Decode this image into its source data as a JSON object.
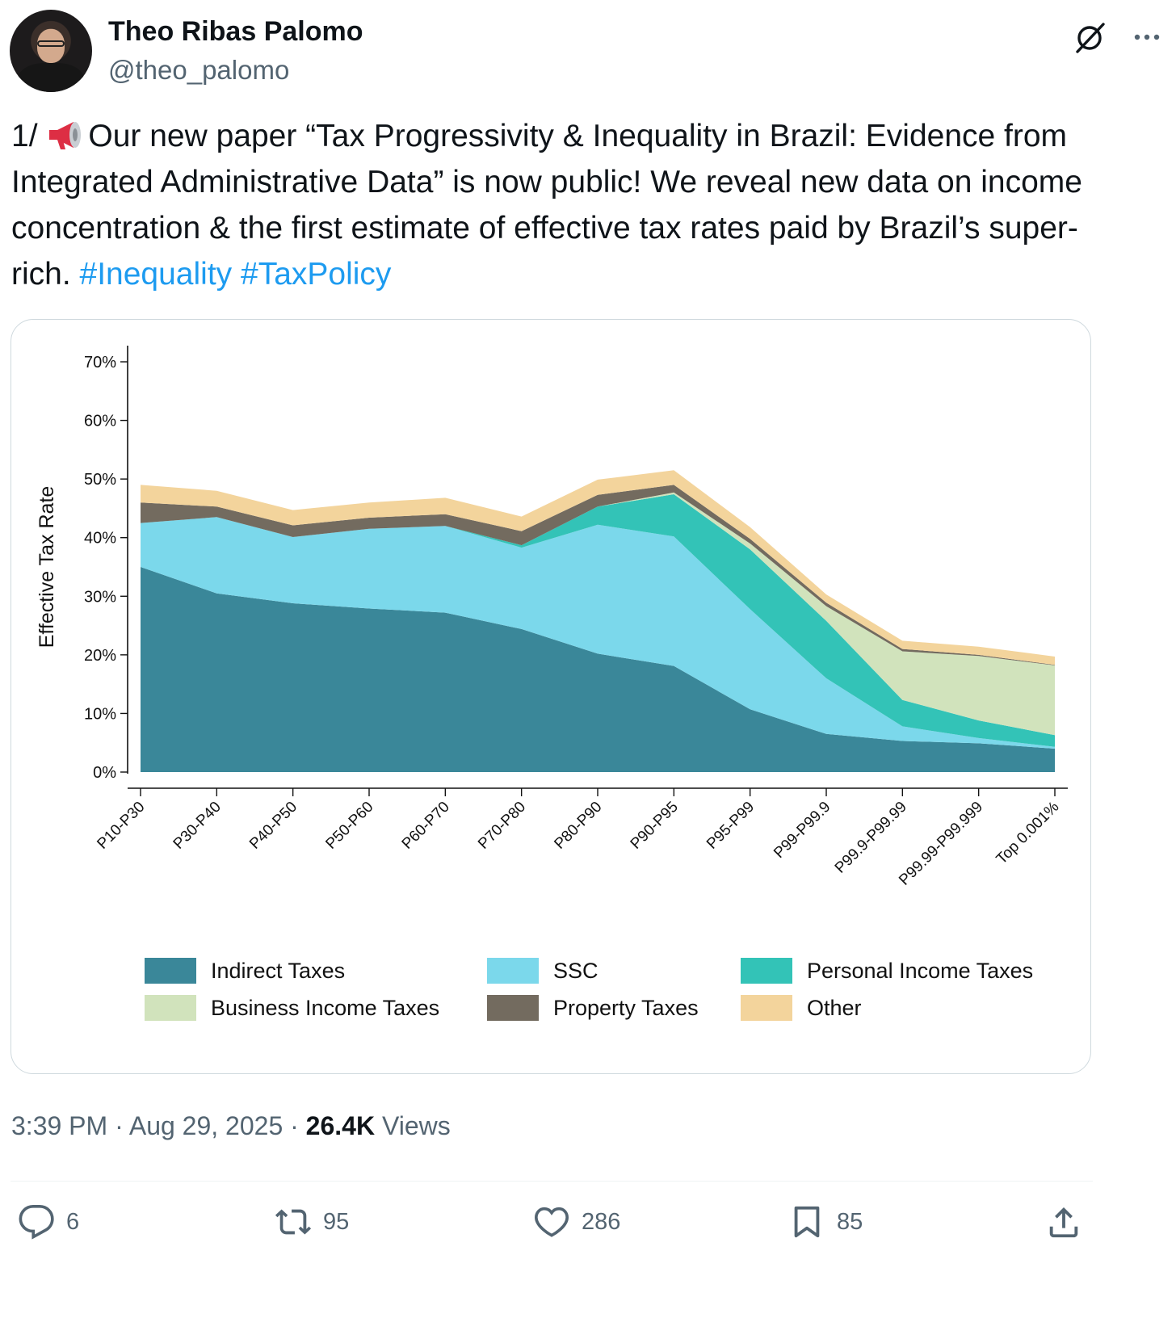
{
  "author": {
    "name": "Theo Ribas Palomo",
    "handle": "@theo_palomo"
  },
  "icons": {
    "grok": "grok-icon",
    "more": "more-icon",
    "megaphone": "megaphone-icon"
  },
  "tweet": {
    "prefix": "1/ ",
    "body": "Our new paper “Tax Progressivity & Inequality in Brazil: Evidence from Integrated Administrative Data” is now public! We reveal new data on income concentration & the first estimate of effective tax rates paid by Brazil’s super-rich. ",
    "hashtags": [
      "#Inequality",
      "#TaxPolicy"
    ]
  },
  "colors": {
    "hashtag": "#1d9bf0",
    "indirect": "#3a8799",
    "ssc": "#7bd8eb",
    "personal": "#33c3b7",
    "business": "#d1e3bc",
    "property": "#736b5f",
    "other": "#f3d49c"
  },
  "chart_data": {
    "type": "area",
    "stacked": true,
    "ylabel": "Effective Tax Rate",
    "ylim": [
      0,
      70
    ],
    "yticks": [
      "0%",
      "10%",
      "20%",
      "30%",
      "40%",
      "50%",
      "60%",
      "70%"
    ],
    "categories": [
      "P10-P30",
      "P30-P40",
      "P40-P50",
      "P50-P60",
      "P60-P70",
      "P70-P80",
      "P80-P90",
      "P90-P95",
      "P95-P99",
      "P99-P99.9",
      "P99.9-P99.99",
      "P99.99-P99.999",
      "Top 0.001%"
    ],
    "series": [
      {
        "name": "Indirect Taxes",
        "color": "#3a8799",
        "values": [
          35,
          30.5,
          28.8,
          27.9,
          27.2,
          24.4,
          20.2,
          18.1,
          10.7,
          6.5,
          5.3,
          4.9,
          4.0
        ]
      },
      {
        "name": "SSC",
        "color": "#7bd8eb",
        "values": [
          7.5,
          13.0,
          11.3,
          13.6,
          14.8,
          13.9,
          22.0,
          22.1,
          17.1,
          9.5,
          2.5,
          0.9,
          0.3
        ]
      },
      {
        "name": "Personal Income Taxes",
        "color": "#33c3b7",
        "values": [
          0,
          0,
          0,
          0,
          0,
          0.4,
          3.1,
          7.2,
          10.2,
          9.8,
          4.5,
          3.0,
          2.0
        ]
      },
      {
        "name": "Business Income Taxes",
        "color": "#d1e3bc",
        "values": [
          0,
          0,
          0,
          0,
          0,
          0,
          0,
          0.3,
          1.0,
          2.5,
          8.3,
          11.0,
          11.9
        ]
      },
      {
        "name": "Property Taxes",
        "color": "#736b5f",
        "values": [
          3.5,
          1.8,
          2.0,
          1.9,
          2.0,
          2.4,
          2.0,
          1.3,
          0.8,
          0.6,
          0.4,
          0.2,
          0.1
        ]
      },
      {
        "name": "Other",
        "color": "#f3d49c",
        "values": [
          3.0,
          2.7,
          2.6,
          2.6,
          2.8,
          2.5,
          2.6,
          2.5,
          2.0,
          1.4,
          1.4,
          1.4,
          1.4
        ]
      }
    ],
    "legend_position": "bottom"
  },
  "meta": {
    "time": "3:39 PM",
    "sep": " · ",
    "date": "Aug 29, 2025",
    "views_count": "26.4K",
    "views_label": " Views"
  },
  "actions": {
    "replies": "6",
    "retweets": "95",
    "likes": "286",
    "bookmarks": "85"
  }
}
